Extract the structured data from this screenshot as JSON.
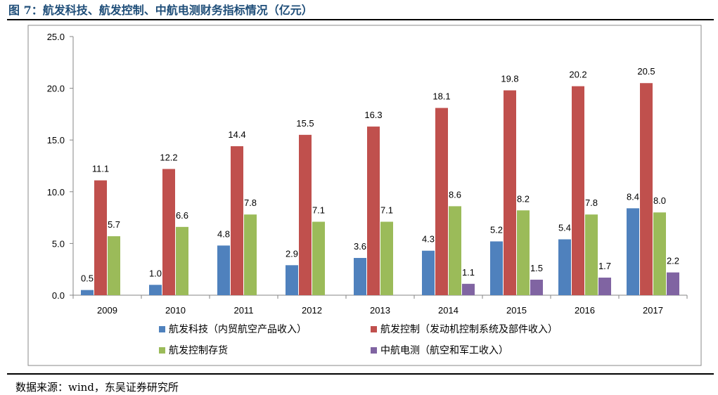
{
  "figure": {
    "title": "图 7：航发科技、航发控制、中航电测财务指标情况（亿元）",
    "source": "数据来源：wind，东吴证券研究所"
  },
  "chart_data": {
    "type": "bar",
    "categories": [
      "2009",
      "2010",
      "2011",
      "2012",
      "2013",
      "2014",
      "2015",
      "2016",
      "2017"
    ],
    "series": [
      {
        "name": "航发科技（内贸航空产品收入）",
        "color": "#4f81bd",
        "values": [
          0.5,
          1.0,
          4.8,
          2.9,
          3.6,
          4.3,
          5.2,
          5.4,
          8.4
        ]
      },
      {
        "name": "航发控制（发动机控制系统及部件收入）",
        "color": "#c0504d",
        "values": [
          11.1,
          12.2,
          14.4,
          15.5,
          16.3,
          18.1,
          19.8,
          20.2,
          20.5
        ]
      },
      {
        "name": "航发控制存货",
        "color": "#9bbb59",
        "values": [
          5.7,
          6.6,
          7.8,
          7.1,
          7.1,
          8.6,
          8.2,
          7.8,
          8.0
        ]
      },
      {
        "name": "中航电测（航空和军工收入）",
        "color": "#8064a2",
        "values": [
          null,
          null,
          null,
          null,
          null,
          1.1,
          1.5,
          1.7,
          2.2
        ]
      }
    ],
    "ylim": [
      0,
      25
    ],
    "yticks": [
      "0.0",
      "5.0",
      "10.0",
      "15.0",
      "20.0",
      "25.0"
    ],
    "grid": false,
    "legend": "bottom"
  }
}
